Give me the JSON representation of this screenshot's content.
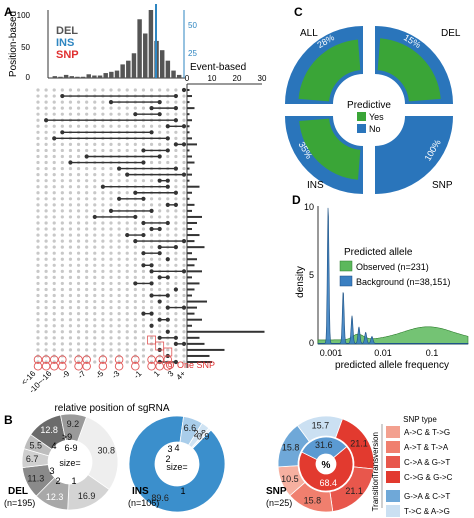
{
  "colors": {
    "del": "#555555",
    "ins": "#2e86c1",
    "snp": "#e03030",
    "predictive_yes": "#3aa537",
    "predictive_no": "#2a75bb",
    "observed": "#5cb85c",
    "background": "#3a7fc1",
    "dot_active": "#333333",
    "dot_inactive": "#c8c8c8",
    "snp_ring": "#e05555"
  },
  "panels": {
    "a": "A",
    "b": "B",
    "c": "C",
    "d": "D"
  },
  "chart_data": [
    {
      "panel": "A",
      "type": "bar",
      "subtype": "upset",
      "top_bar": {
        "ylabel": "Position-based",
        "right_axis_label_ticks": [
          "25",
          "50"
        ],
        "yticks": [
          0,
          50,
          100
        ],
        "ylim": [
          0,
          110
        ],
        "values": [
          3,
          2,
          5,
          3,
          2,
          2,
          6,
          4,
          4,
          8,
          10,
          12,
          22,
          28,
          40,
          95,
          72,
          110,
          60,
          45,
          28,
          12,
          5
        ],
        "legend": [
          "DEL",
          "INS",
          "SNP"
        ]
      },
      "right_bar": {
        "xlabel": "Event-based",
        "xticks": [
          0,
          10,
          20,
          30
        ],
        "xlim": [
          0,
          30
        ]
      },
      "x": {
        "label": "relative position of sgRNA",
        "ticks": [
          "<-16",
          "-10~-16",
          "-9",
          "-7",
          "-5",
          "-3",
          "-1",
          "1",
          "3",
          "4+"
        ]
      },
      "annotation": "One SNP"
    },
    {
      "panel": "B",
      "type": "pie",
      "subtype": "donut",
      "charts": [
        {
          "name": "DEL",
          "n_label": "(n=195)",
          "inner": {
            "size_label": "size=",
            "labels": [
              ">9",
              "6-9",
              "4",
              "3",
              "2",
              "1"
            ]
          },
          "outer_values": [
            30.8,
            16.9,
            12.3,
            11.3,
            6.7,
            5.5,
            12.8,
            9.2
          ]
        },
        {
          "name": "INS",
          "n_label": "(n=106)",
          "inner": {
            "size_label": "size=",
            "labels": [
              "3",
              "4",
              "2",
              "1"
            ]
          },
          "outer_values": [
            89.6,
            6.6,
            2.8,
            0.9
          ]
        },
        {
          "name": "SNP",
          "n_label": "(n=25)",
          "center_label": "%",
          "outer_values": [
            21.1,
            21.1,
            15.8,
            10.5,
            15.8,
            15.7
          ],
          "inner_values": [
            68.4,
            31.6
          ],
          "legend_title": "SNP type",
          "legend_groups": [
            {
              "name": "Transversion",
              "items": [
                "A->C & T->G",
                "A->T & T->A",
                "C->A & G->T",
                "C->G & G->C"
              ]
            },
            {
              "name": "Transition",
              "items": [
                "G->A & C->T",
                "T->C & A->G"
              ]
            }
          ]
        }
      ]
    },
    {
      "panel": "C",
      "type": "pie",
      "subtype": "quarter-donut",
      "legend_title": "Predictive",
      "legend": [
        "Yes",
        "No"
      ],
      "groups": [
        {
          "name": "ALL",
          "label": "28%",
          "yes": 72,
          "no": 28
        },
        {
          "name": "DEL",
          "label": "15%",
          "yes": 85,
          "no": 15
        },
        {
          "name": "INS",
          "label": "35%",
          "yes": 65,
          "no": 35
        },
        {
          "name": "SNP",
          "label": "100%",
          "yes": 0,
          "no": 100
        }
      ]
    },
    {
      "panel": "D",
      "type": "area",
      "xlabel": "predicted allele frequency",
      "ylabel": "density",
      "xscale": "log",
      "xticks": [
        "0.001",
        "0.01",
        "0.1"
      ],
      "yticks": [
        "0",
        "5",
        "10"
      ],
      "ylim": [
        0,
        10
      ],
      "legend_title": "Predicted allele",
      "series": [
        {
          "name": "Observed (n=231)"
        },
        {
          "name": "Background (n=38,151)"
        }
      ]
    }
  ]
}
